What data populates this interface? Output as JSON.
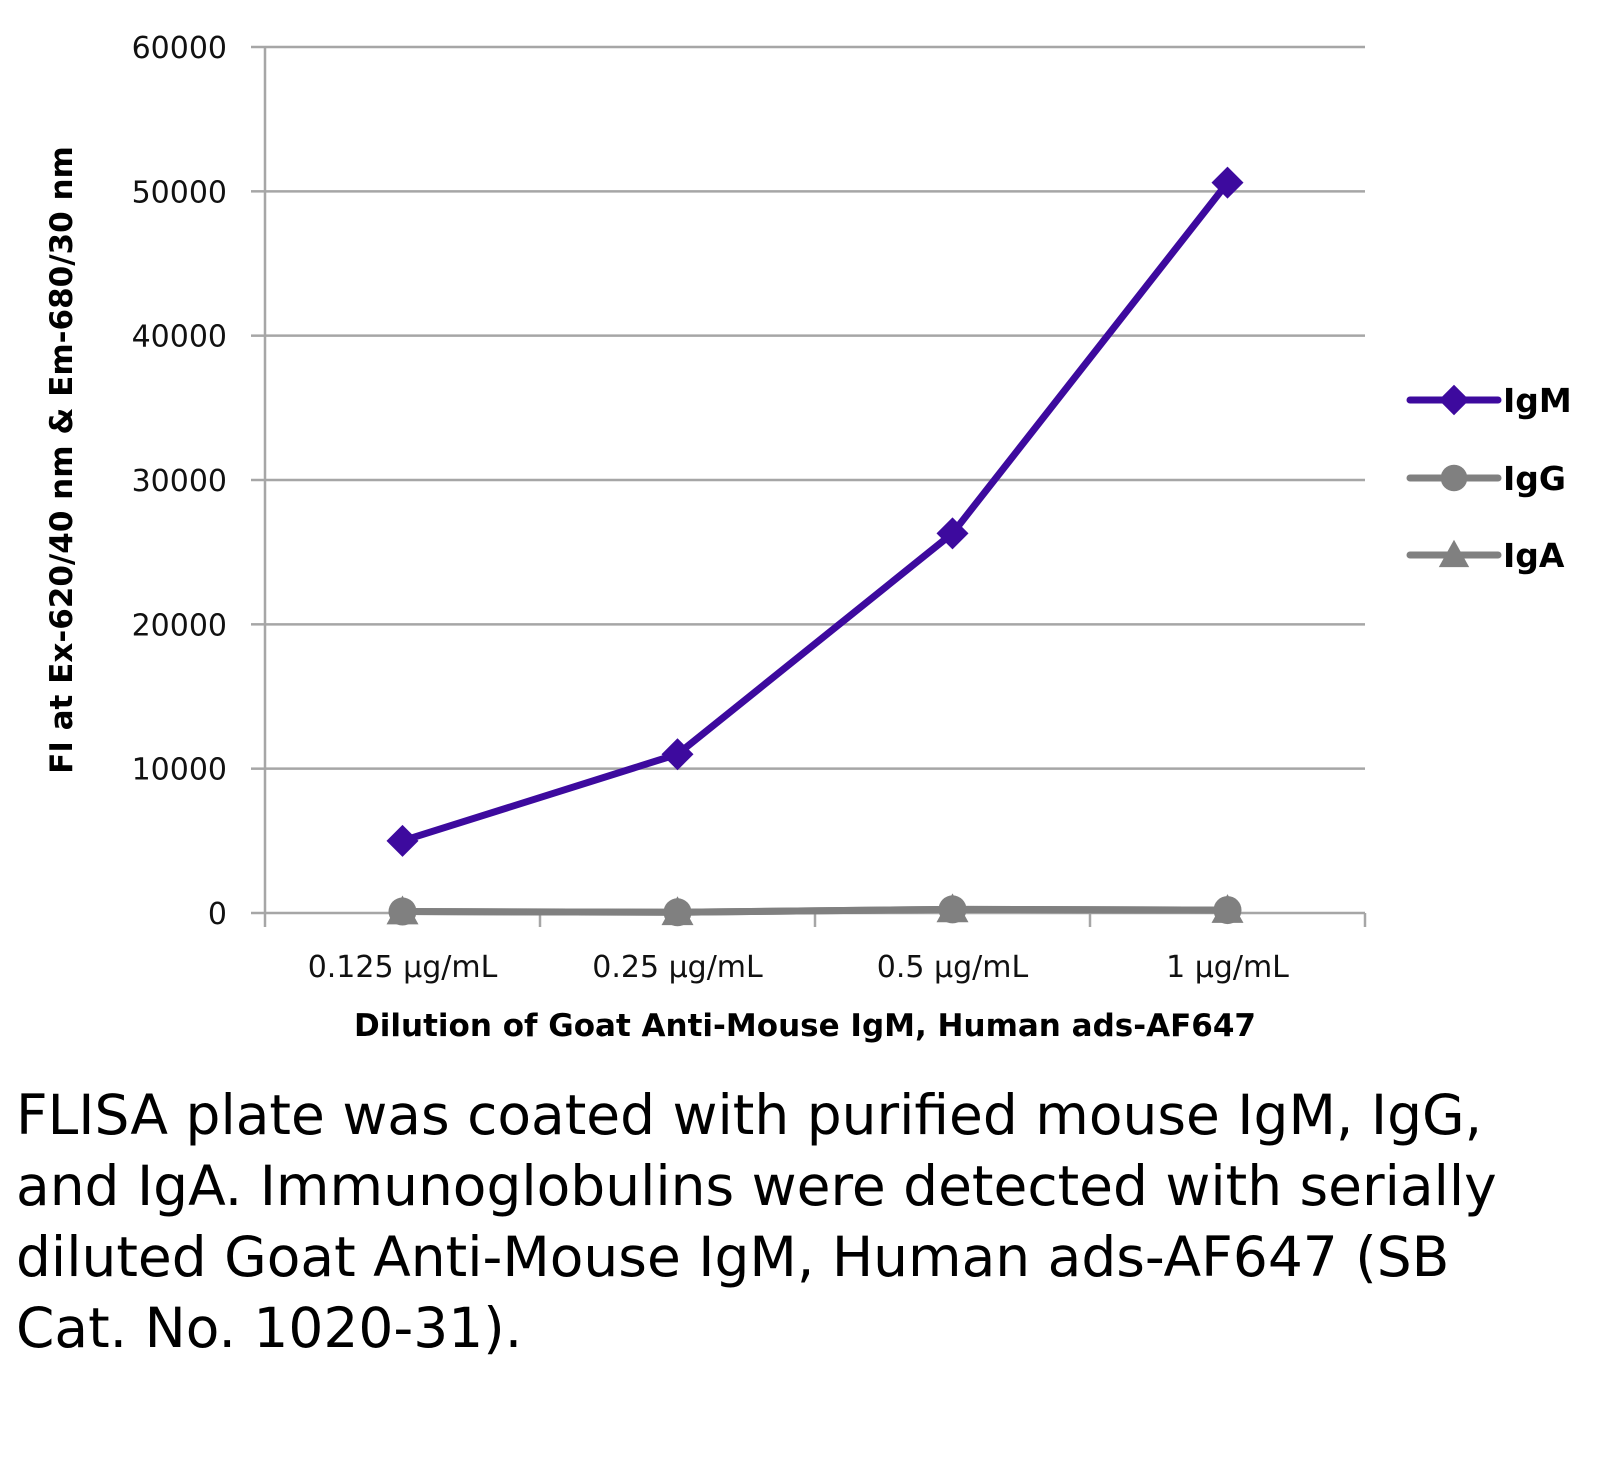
{
  "chart_data": {
    "type": "line",
    "title": "",
    "categories": [
      "0.125 µg/mL",
      "0.25 µg/mL",
      "0.5 µg/mL",
      "1 µg/mL"
    ],
    "series": [
      {
        "name": "IgM",
        "values": [
          5000,
          11000,
          26300,
          50600
        ],
        "color": "#3d0a9e",
        "marker": "diamond"
      },
      {
        "name": "IgG",
        "values": [
          100,
          50,
          250,
          200
        ],
        "color": "#808080",
        "marker": "circle"
      },
      {
        "name": "IgA",
        "values": [
          100,
          50,
          250,
          200
        ],
        "color": "#808080",
        "marker": "triangle"
      }
    ],
    "xlabel": "Dilution of Goat Anti-Mouse IgM, Human ads-AF647",
    "ylabel": "FI at Ex-620/40 nm & Em-680/30 nm",
    "ylim": [
      0,
      60000
    ],
    "yticks": [
      0,
      10000,
      20000,
      30000,
      40000,
      50000,
      60000
    ],
    "ytick_labels": [
      "0",
      "10000",
      "20000",
      "30000",
      "40000",
      "50000",
      "60000"
    ],
    "grid": true,
    "legend_position": "right"
  },
  "caption": "FLISA plate was coated with purified mouse IgM, IgG, and IgA.  Immunoglobulins were detected with serially diluted Goat Anti-Mouse IgM, Human ads-AF647 (SB Cat. No. 1020-31)."
}
